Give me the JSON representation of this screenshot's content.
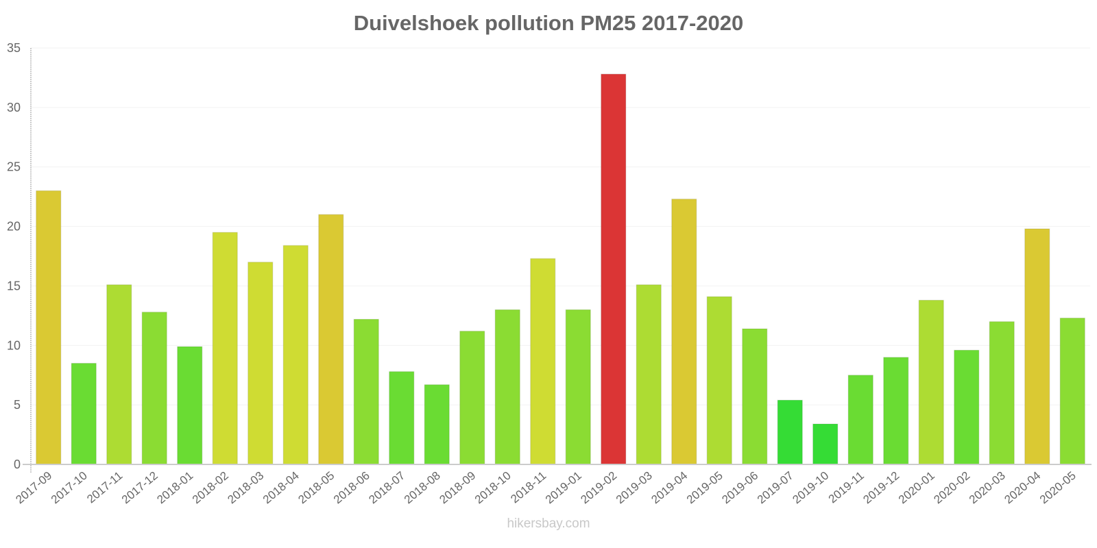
{
  "chart_data": {
    "type": "bar",
    "title": "Duivelshoek pollution PM25 2017-2020",
    "xlabel": "",
    "ylabel": "",
    "ylim": [
      0,
      35
    ],
    "yticks": [
      0,
      5,
      10,
      15,
      20,
      25,
      30,
      35
    ],
    "grid": true,
    "legend": null,
    "categories": [
      "2017-09",
      "2017-10",
      "2017-11",
      "2017-12",
      "2018-01",
      "2018-02",
      "2018-03",
      "2018-04",
      "2018-05",
      "2018-06",
      "2018-07",
      "2018-08",
      "2018-09",
      "2018-10",
      "2018-11",
      "2019-01",
      "2019-02",
      "2019-03",
      "2019-04",
      "2019-05",
      "2019-06",
      "2019-07",
      "2019-10",
      "2019-11",
      "2019-12",
      "2020-01",
      "2020-02",
      "2020-03",
      "2020-04",
      "2020-05"
    ],
    "values": [
      23.0,
      8.5,
      15.1,
      12.8,
      9.9,
      19.5,
      17.0,
      18.4,
      21.0,
      12.2,
      7.8,
      6.7,
      11.2,
      13.0,
      17.3,
      13.0,
      32.8,
      15.1,
      22.3,
      14.1,
      11.4,
      5.4,
      3.4,
      7.5,
      9.0,
      13.8,
      9.6,
      12.0,
      19.8,
      12.3
    ],
    "colors": [
      "#dac933",
      "#6adc33",
      "#addc33",
      "#8bdc33",
      "#6adc33",
      "#cfdc33",
      "#cfdc33",
      "#cfdc33",
      "#dac933",
      "#8bdc33",
      "#6adc33",
      "#6adc33",
      "#8bdc33",
      "#8bdc33",
      "#cfdc33",
      "#8bdc33",
      "#db3535",
      "#addc33",
      "#dac933",
      "#addc33",
      "#8bdc33",
      "#35dc35",
      "#35dc35",
      "#6adc33",
      "#6adc33",
      "#addc33",
      "#6adc33",
      "#8bdc33",
      "#dac933",
      "#8bdc33"
    ]
  },
  "watermark": "hikersbay.com"
}
